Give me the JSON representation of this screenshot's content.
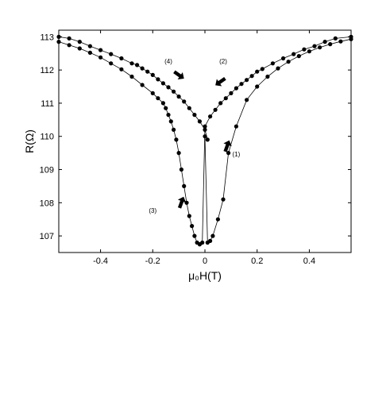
{
  "chart_data": {
    "type": "scatter",
    "xlabel": "μ₀H(T)",
    "ylabel": "R(Ω)",
    "xlim": [
      -0.56,
      0.56
    ],
    "ylim": [
      106.5,
      113.2
    ],
    "xticks": [
      -0.4,
      -0.2,
      0,
      0.2,
      0.4
    ],
    "xtick_labels": [
      "-0.4",
      "-0.2",
      "0",
      "0.2",
      "0.4"
    ],
    "yticks": [
      107,
      108,
      109,
      110,
      111,
      112,
      113
    ],
    "ytick_labels": [
      "107",
      "108",
      "109",
      "110",
      "111",
      "112",
      "113"
    ],
    "grid": false,
    "legend": "none",
    "marker_color": "#000000",
    "series": [
      {
        "x": [
          0.0,
          0.01,
          0.02,
          0.03,
          0.05,
          0.07,
          0.09,
          0.12,
          0.16,
          0.2,
          0.24,
          0.28,
          0.32,
          0.36,
          0.4,
          0.44,
          0.48,
          0.52,
          0.56
        ],
        "y": [
          110.0,
          106.8,
          106.85,
          107.0,
          107.5,
          108.1,
          109.5,
          110.3,
          111.1,
          111.5,
          111.8,
          112.05,
          112.25,
          112.42,
          112.56,
          112.68,
          112.78,
          112.86,
          112.93
        ]
      },
      {
        "x": [
          0.56,
          0.5,
          0.46,
          0.42,
          0.38,
          0.34,
          0.3,
          0.26,
          0.22,
          0.2,
          0.18,
          0.16,
          0.14,
          0.12,
          0.1,
          0.08,
          0.06,
          0.04,
          0.02,
          0.0,
          -0.01,
          -0.02
        ],
        "y": [
          113.0,
          112.95,
          112.85,
          112.72,
          112.62,
          112.48,
          112.35,
          112.2,
          112.03,
          111.95,
          111.82,
          111.7,
          111.58,
          111.45,
          111.3,
          111.15,
          111.0,
          110.8,
          110.6,
          110.3,
          106.8,
          106.75
        ]
      },
      {
        "x": [
          -0.02,
          -0.03,
          -0.04,
          -0.05,
          -0.06,
          -0.07,
          -0.08,
          -0.09,
          -0.1,
          -0.11,
          -0.12,
          -0.13,
          -0.14,
          -0.15,
          -0.16,
          -0.18,
          -0.2,
          -0.24,
          -0.28,
          -0.32,
          -0.36,
          -0.4,
          -0.44,
          -0.48,
          -0.52,
          -0.56
        ],
        "y": [
          106.75,
          106.8,
          107.0,
          107.3,
          107.6,
          108.0,
          108.5,
          109.0,
          109.5,
          109.9,
          110.2,
          110.45,
          110.65,
          110.85,
          111.0,
          111.15,
          111.3,
          111.55,
          111.8,
          112.02,
          112.2,
          112.38,
          112.52,
          112.65,
          112.75,
          112.85
        ]
      },
      {
        "x": [
          -0.56,
          -0.52,
          -0.48,
          -0.44,
          -0.4,
          -0.36,
          -0.32,
          -0.28,
          -0.26,
          -0.24,
          -0.22,
          -0.2,
          -0.18,
          -0.16,
          -0.14,
          -0.12,
          -0.1,
          -0.08,
          -0.06,
          -0.04,
          -0.02,
          0.0,
          0.01
        ],
        "y": [
          113.0,
          112.95,
          112.85,
          112.72,
          112.6,
          112.48,
          112.35,
          112.2,
          112.15,
          112.05,
          111.95,
          111.85,
          111.72,
          111.6,
          111.48,
          111.35,
          111.2,
          111.05,
          110.85,
          110.65,
          110.45,
          110.2,
          109.9
        ]
      }
    ],
    "annotations": [
      {
        "text": "(1)",
        "x": 0.12,
        "y": 109.4
      },
      {
        "text": "(2)",
        "x": 0.07,
        "y": 112.2
      },
      {
        "text": "(3)",
        "x": -0.2,
        "y": 107.7
      },
      {
        "text": "(4)",
        "x": -0.14,
        "y": 112.2
      }
    ],
    "arrows": [
      {
        "x": 0.085,
        "y": 109.7,
        "angle": -70
      },
      {
        "x": 0.06,
        "y": 111.65,
        "angle": 145
      },
      {
        "x": -0.09,
        "y": 108.0,
        "angle": -70
      },
      {
        "x": -0.1,
        "y": 111.85,
        "angle": 35
      }
    ]
  }
}
